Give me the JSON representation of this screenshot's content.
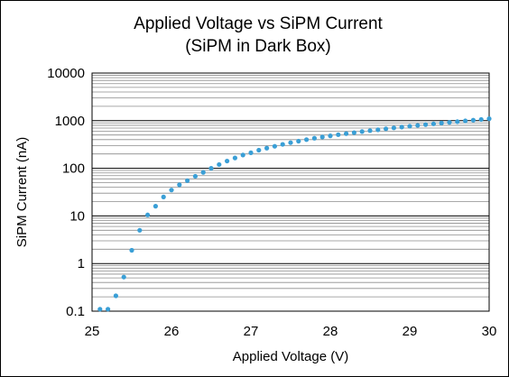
{
  "chart_data": {
    "type": "scatter",
    "title": [
      "Applied Voltage vs SiPM Current",
      "(SiPM in Dark Box)"
    ],
    "xlabel": "Applied Voltage (V)",
    "ylabel": "SiPM Current (nA)",
    "x_scale": "linear",
    "y_scale": "log",
    "xlim": [
      25,
      30
    ],
    "ylim": [
      0.1,
      10000
    ],
    "x_ticks": [
      "25",
      "26",
      "27",
      "28",
      "29",
      "30"
    ],
    "y_ticks": [
      "0.1",
      "1",
      "10",
      "100",
      "1000",
      "10000"
    ],
    "grid": "horizontal, major and minor",
    "legend": "none",
    "marker_color": "#3a9fd6",
    "series": [
      {
        "x": [
          25.1,
          25.2,
          25.3,
          25.4,
          25.5,
          25.6,
          25.7,
          25.8,
          25.9,
          26.0,
          26.1,
          26.2,
          26.3,
          26.4,
          26.5,
          26.6,
          26.7,
          26.8,
          26.9,
          27.0,
          27.1,
          27.2,
          27.3,
          27.4,
          27.5,
          27.6,
          27.7,
          27.8,
          27.9,
          28.0,
          28.1,
          28.2,
          28.3,
          28.4,
          28.5,
          28.6,
          28.7,
          28.8,
          28.9,
          29.0,
          29.1,
          29.2,
          29.3,
          29.4,
          29.5,
          29.6,
          29.7,
          29.8,
          29.9,
          30.0
        ],
        "y": [
          0.11,
          0.11,
          0.21,
          0.52,
          1.9,
          5.0,
          10.5,
          16,
          25,
          35,
          45,
          55,
          68,
          82,
          100,
          120,
          142,
          165,
          190,
          212,
          240,
          265,
          290,
          318,
          345,
          372,
          400,
          428,
          455,
          480,
          508,
          535,
          560,
          590,
          618,
          645,
          675,
          705,
          735,
          765,
          795,
          825,
          858,
          890,
          922,
          955,
          990,
          1025,
          1060,
          1100
        ]
      }
    ]
  }
}
